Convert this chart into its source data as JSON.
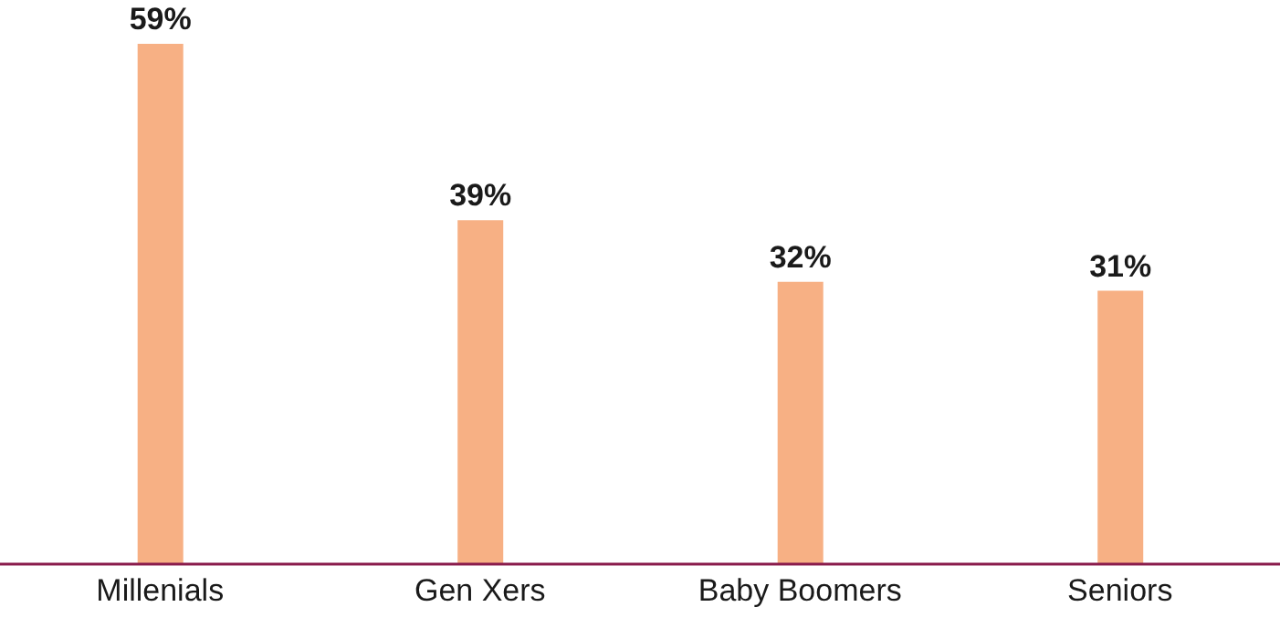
{
  "chart_data": {
    "type": "bar",
    "categories": [
      "Millenials",
      "Gen Xers",
      "Baby Boomers",
      "Seniors"
    ],
    "values": [
      59,
      39,
      32,
      31
    ],
    "value_labels": [
      "59%",
      "39%",
      "32%",
      "31%"
    ],
    "color": "#f7b084",
    "grid": false,
    "legend": false
  }
}
